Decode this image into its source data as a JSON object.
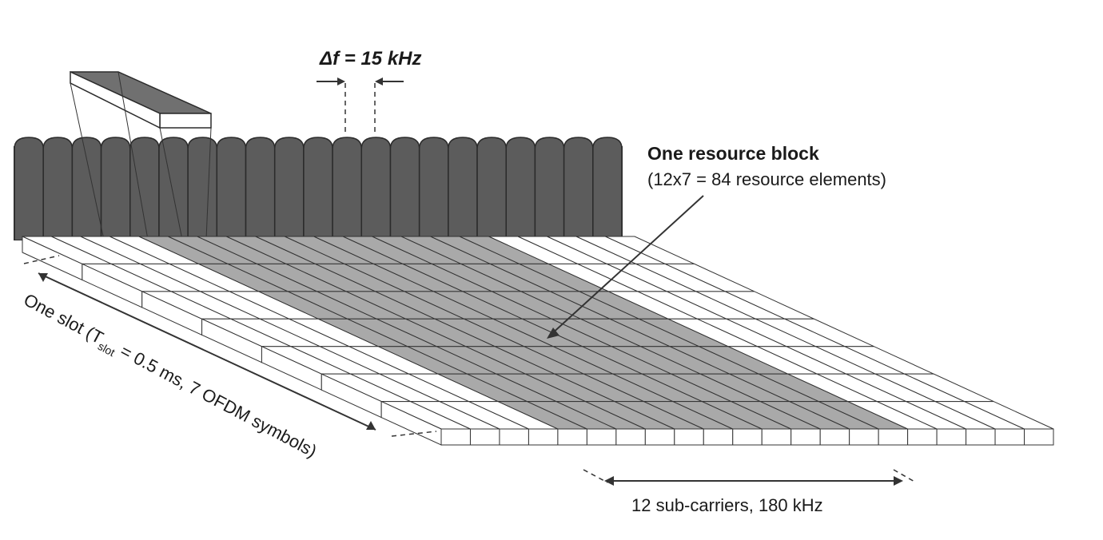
{
  "labels": {
    "delta_f": "Δf = 15 kHz",
    "rb_title": "One resource block",
    "rb_detail": "(12x7 = 84 resource elements)",
    "slot_prefix": "One slot (T",
    "slot_sub": "slot",
    "slot_suffix": " = 0.5 ms, 7 OFDM symbols)",
    "subcarriers": "12 sub-carriers, 180 kHz"
  },
  "diagram": {
    "subcarrier_count": 21,
    "ofdm_symbol_count": 7,
    "highlight_subcarriers": 12,
    "colors": {
      "pulse": "#5c5c5c",
      "pulse_edge": "#2b2b2b",
      "cell": "#ffffff",
      "highlight": "#a9a9a9",
      "line": "#333333"
    }
  }
}
